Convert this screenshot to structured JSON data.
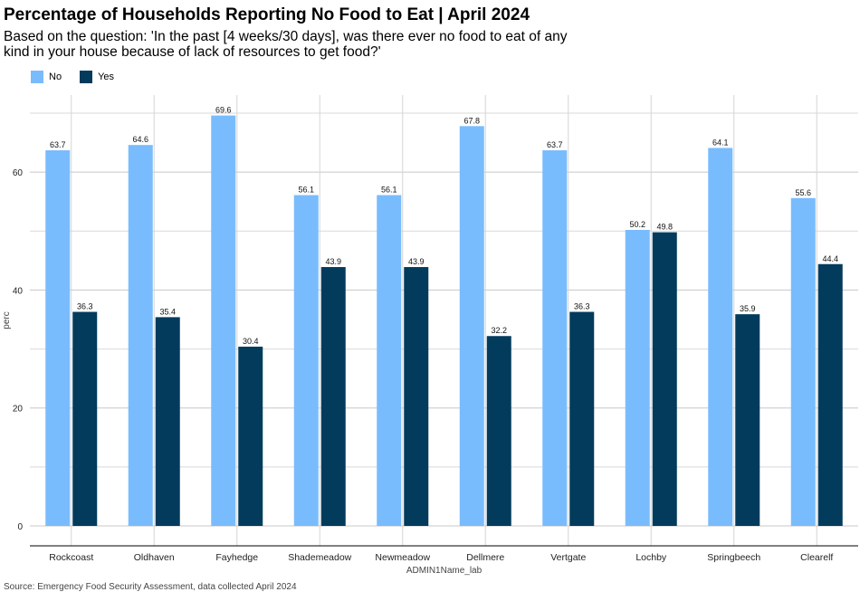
{
  "chart_data": {
    "type": "bar",
    "title": "Percentage of Households Reporting No Food to Eat | April 2024",
    "subtitle": "Based on the question: 'In the past [4 weeks/30 days], was there ever no food to eat of any kind in your house because of lack of resources to get food?'",
    "xlabel": "ADMIN1Name_lab",
    "ylabel": "perc",
    "ylim": [
      0,
      70
    ],
    "yticks": [
      0,
      20,
      40,
      60
    ],
    "grid": true,
    "legend_position": "top-left",
    "categories": [
      "Rockcoast",
      "Oldhaven",
      "Fayhedge",
      "Shademeadow",
      "Newmeadow",
      "Dellmere",
      "Vertgate",
      "Lochby",
      "Springbeech",
      "Clearelf"
    ],
    "series": [
      {
        "name": "No",
        "color": "#79bcfd",
        "values": [
          63.7,
          64.6,
          69.6,
          56.1,
          56.1,
          67.8,
          63.7,
          50.2,
          64.1,
          55.6
        ]
      },
      {
        "name": "Yes",
        "color": "#033b5c",
        "values": [
          36.3,
          35.4,
          30.4,
          43.9,
          43.9,
          32.2,
          36.3,
          49.8,
          35.9,
          44.4
        ]
      }
    ],
    "caption": "Source: Emergency Food Security Assessment, data collected April 2024"
  }
}
